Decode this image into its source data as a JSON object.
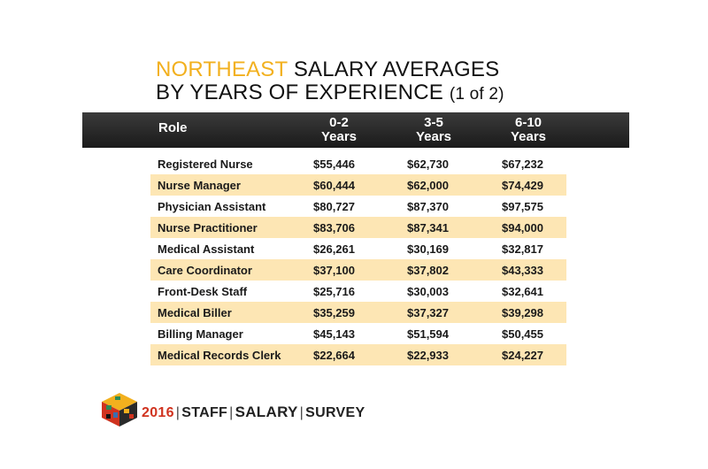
{
  "title": {
    "accent": "NORTHEAST",
    "line1_rest": " SALARY AVERAGES",
    "line2": "BY YEARS OF EXPERIENCE ",
    "part": "(1 of 2)"
  },
  "colors": {
    "accent": "#f2b01e",
    "header_bg": "#2a2a2a",
    "row_shade": "#fde6b4"
  },
  "table": {
    "headers": [
      "Role",
      "0-2 Years",
      "3-5 Years",
      "6-10 Years"
    ],
    "header_lines": [
      [
        "Role"
      ],
      [
        "0-2",
        "Years"
      ],
      [
        "3-5",
        "Years"
      ],
      [
        "6-10",
        "Years"
      ]
    ],
    "rows": [
      [
        "Registered Nurse",
        "$55,446",
        "$62,730",
        "$67,232"
      ],
      [
        "Nurse Manager",
        "$60,444",
        "$62,000",
        "$74,429"
      ],
      [
        "Physician Assistant",
        "$80,727",
        "$87,370",
        "$97,575"
      ],
      [
        "Nurse Practitioner",
        "$83,706",
        "$87,341",
        "$94,000"
      ],
      [
        "Medical Assistant",
        "$26,261",
        "$30,169",
        "$32,817"
      ],
      [
        "Care Coordinator",
        "$37,100",
        "$37,802",
        "$43,333"
      ],
      [
        "Front-Desk Staff",
        "$25,716",
        "$30,003",
        "$32,641"
      ],
      [
        "Medical Biller",
        "$35,259",
        "$37,327",
        "$39,298"
      ],
      [
        "Billing Manager",
        "$45,143",
        "$51,594",
        "$50,455"
      ],
      [
        "Medical Records Clerk",
        "$22,664",
        "$22,933",
        "$24,227"
      ]
    ]
  },
  "chart_data": {
    "type": "table",
    "title": "NORTHEAST SALARY AVERAGES BY YEARS OF EXPERIENCE (1 of 2)",
    "columns": [
      "Role",
      "0-2 Years",
      "3-5 Years",
      "6-10 Years"
    ],
    "categories": [
      "Registered Nurse",
      "Nurse Manager",
      "Physician Assistant",
      "Nurse Practitioner",
      "Medical Assistant",
      "Care Coordinator",
      "Front-Desk Staff",
      "Medical Biller",
      "Billing Manager",
      "Medical Records Clerk"
    ],
    "series": [
      {
        "name": "0-2 Years",
        "values": [
          55446,
          60444,
          80727,
          83706,
          26261,
          37100,
          25716,
          35259,
          45143,
          22664
        ]
      },
      {
        "name": "3-5 Years",
        "values": [
          62730,
          62000,
          87370,
          87341,
          30169,
          37802,
          30003,
          37327,
          51594,
          22933
        ]
      },
      {
        "name": "6-10 Years",
        "values": [
          67232,
          74429,
          97575,
          94000,
          32817,
          43333,
          32641,
          39298,
          50455,
          24227
        ]
      }
    ]
  },
  "footer": {
    "logo_icon": "salary-survey-cube-icon",
    "year": "2016",
    "word1": "STAFF",
    "word2": "SALARY",
    "word3": "SURVEY",
    "separator": "|"
  }
}
